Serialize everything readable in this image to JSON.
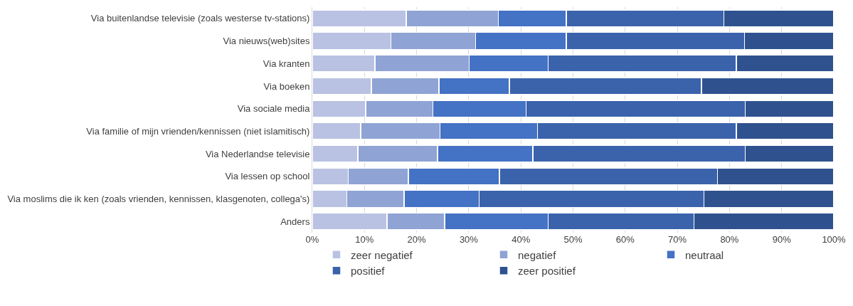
{
  "chart_data": {
    "type": "bar",
    "orientation": "horizontal",
    "stacked": true,
    "categories": [
      "Via buitenlandse televisie (zoals westerse tv-stations)",
      "Via nieuws(web)sites",
      "Via kranten",
      "Via boeken",
      "Via sociale media",
      "Via familie of mijn vrienden/kennissen (niet islamitisch)",
      "Via Nederlandse televisie",
      "Via lessen op school",
      "Via moslims die ik ken (zoals vrienden, kennissen, klasgenoten, collega's)",
      "Anders"
    ],
    "series": [
      {
        "name": "zeer negatief",
        "color": "#b9c2e2",
        "values": [
          18,
          15.1,
          12,
          11.3,
          10.2,
          9.3,
          8.7,
          6.9,
          6.6,
          14.3
        ]
      },
      {
        "name": "negatief",
        "color": "#8fa3d4",
        "values": [
          17.7,
          16.2,
          18.1,
          13,
          12.9,
          15.2,
          15.3,
          11.5,
          11,
          11.1
        ]
      },
      {
        "name": "neutraal",
        "color": "#4472c4",
        "values": [
          13,
          17.4,
          15.1,
          13.5,
          17.9,
          18.7,
          18.3,
          17.5,
          14.4,
          19.8
        ]
      },
      {
        "name": "positief",
        "color": "#3a63ab",
        "values": [
          30.2,
          34.2,
          36.1,
          36.8,
          42,
          38.1,
          40.7,
          41.8,
          43.1,
          28
        ]
      },
      {
        "name": "zeer positief",
        "color": "#2f528f",
        "values": [
          21.1,
          17.1,
          18.7,
          25.4,
          17,
          18.7,
          17,
          22.3,
          24.9,
          26.8
        ]
      }
    ],
    "xlim": [
      0,
      100
    ],
    "xticks": [
      {
        "value": 0,
        "label": "0%"
      },
      {
        "value": 10,
        "label": "10%"
      },
      {
        "value": 20,
        "label": "20%"
      },
      {
        "value": 30,
        "label": "30%"
      },
      {
        "value": 40,
        "label": "40%"
      },
      {
        "value": 50,
        "label": "50%"
      },
      {
        "value": 60,
        "label": "60%"
      },
      {
        "value": 70,
        "label": "70%"
      },
      {
        "value": 80,
        "label": "80%"
      },
      {
        "value": 90,
        "label": "90%"
      },
      {
        "value": 100,
        "label": "100%"
      }
    ],
    "grid": "x",
    "legend": "bottom"
  }
}
